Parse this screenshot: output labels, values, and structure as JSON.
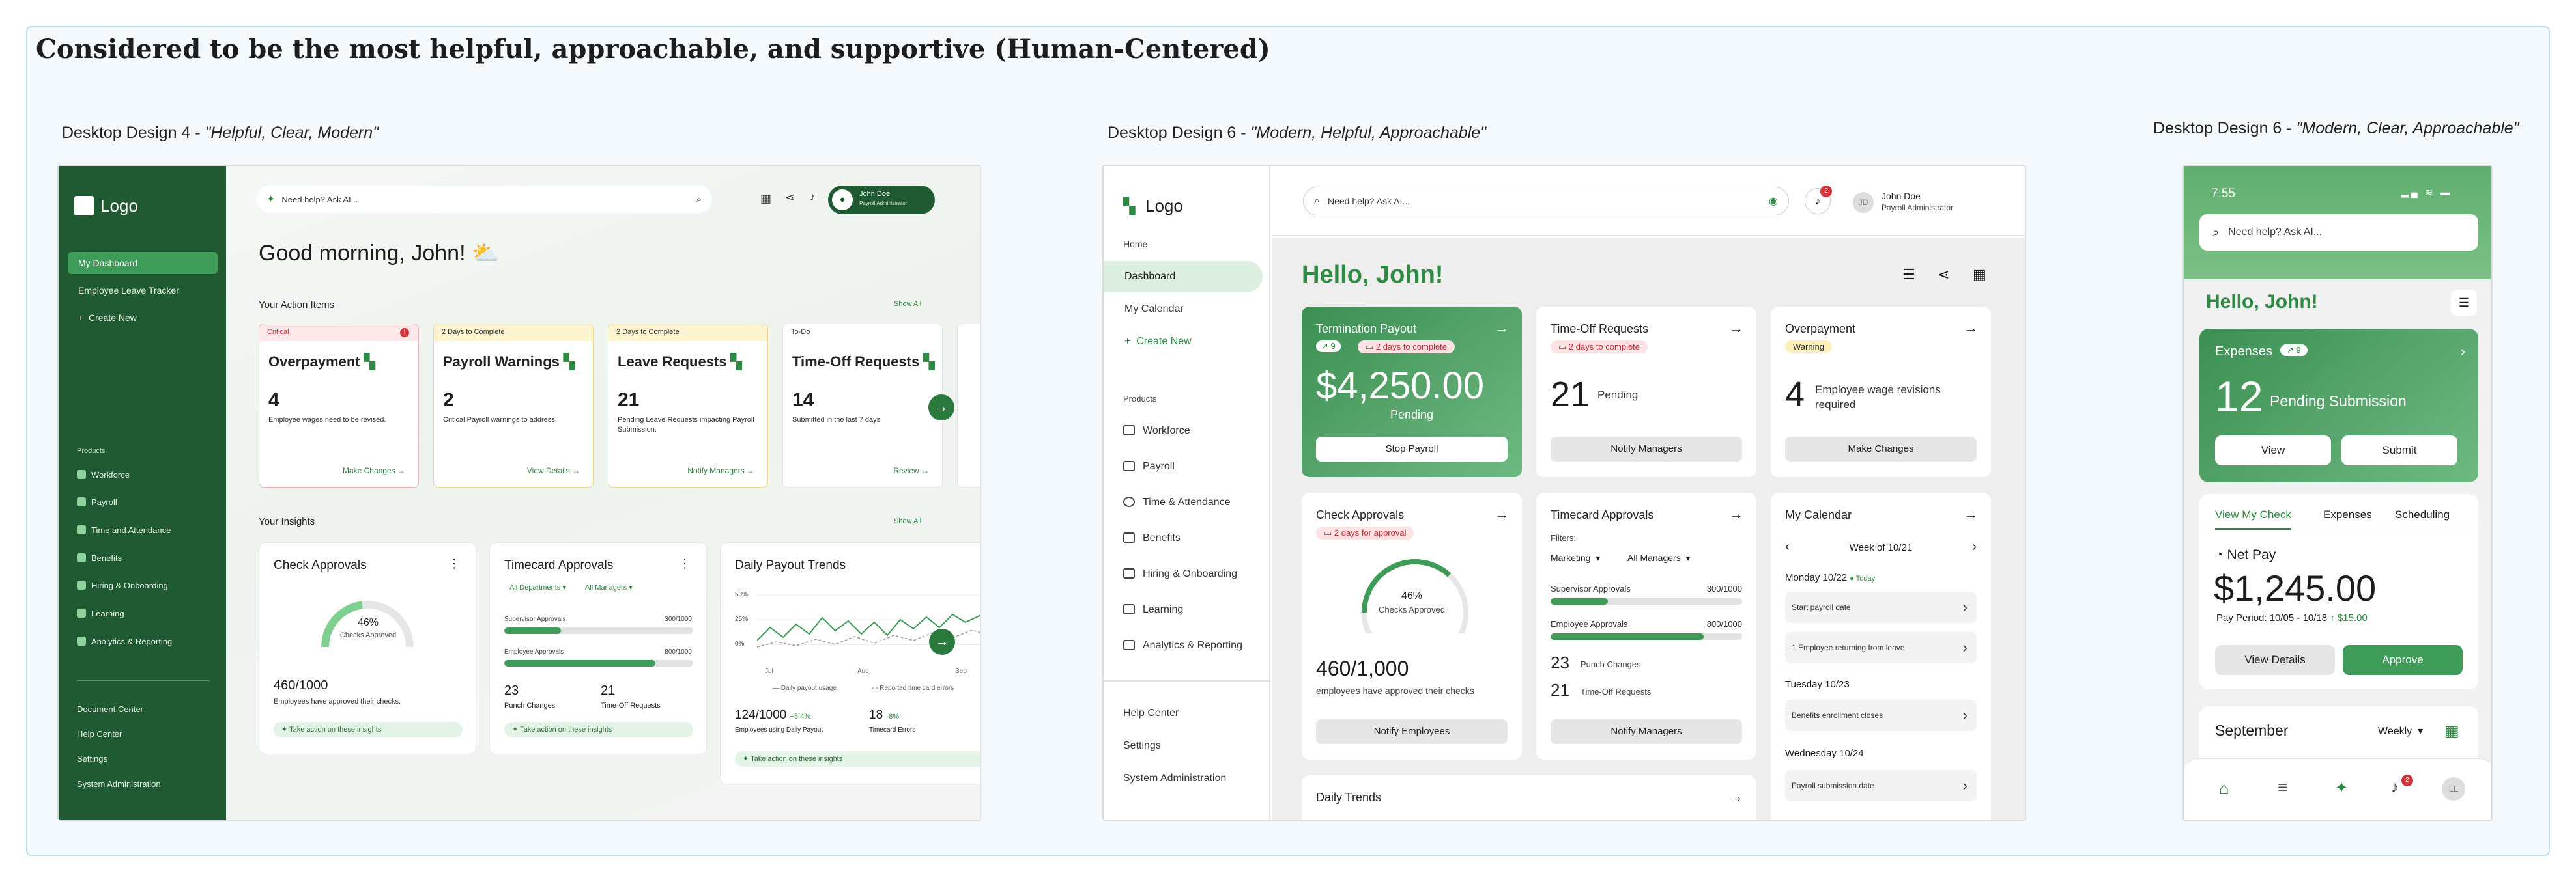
{
  "board_title": "Considered to be the most helpful, approachable, and supportive (Human-Centered)",
  "labels": {
    "d4_prefix": "Desktop Design 4 - ",
    "d4_quote": "\"Helpful, Clear, Modern\"",
    "d6_prefix": "Desktop Design 6 - ",
    "d6_quote": "\"Modern, Helpful, Approachable\"",
    "m6_prefix": "Desktop Design 6 - ",
    "m6_quote": "\"Modern, Clear, Approachable\""
  },
  "d4": {
    "logo": "Logo",
    "nav": [
      "My Dashboard",
      "Employee Leave Tracker",
      "Create New"
    ],
    "products_heading": "Products",
    "products": [
      "Workforce",
      "Payroll",
      "Time and Attendance",
      "Benefits",
      "Hiring & Onboarding",
      "Learning",
      "Analytics & Reporting"
    ],
    "bottom_nav": [
      "Document Center",
      "Help Center",
      "Settings",
      "System Administration"
    ],
    "search_placeholder": "Need help? Ask AI...",
    "user_name": "John Doe",
    "user_role": "Payroll Administrator",
    "greeting": "Good morning, John! ⛅",
    "action_items_title": "Your Action Items",
    "show_all": "Show All",
    "cards": [
      {
        "header": "Critical",
        "title": "Overpayment",
        "number": "4",
        "desc": "Employee wages need to be revised.",
        "action": "Make Changes →"
      },
      {
        "header": "2 Days to Complete",
        "title": "Payroll Warnings",
        "number": "2",
        "desc": "Critical Payroll warnings to address.",
        "action": "View Details →"
      },
      {
        "header": "2 Days to Complete",
        "title": "Leave Requests",
        "number": "21",
        "desc": "Pending Leave Requests impacting Payroll Submission.",
        "action": "Notify Managers →"
      },
      {
        "header": "To-Do",
        "title": "Time-Off Requests",
        "number": "14",
        "desc": "Submitted in the last 7 days",
        "action": "Review →"
      }
    ],
    "insights_title": "Your Insights",
    "check_approvals": {
      "title": "Check Approvals",
      "pct": "46%",
      "pct_value": 46,
      "pct_label": "Checks Approved",
      "count": "460/1000",
      "desc": "Employees have approved their checks.",
      "take": "Take action on these insights"
    },
    "timecard": {
      "title": "Timecard Approvals",
      "filter1": "All Departments",
      "filter2": "All Managers",
      "sup_label": "Supervisor Approvals",
      "sup_val": "300/1000",
      "sup_fill": 0.3,
      "emp_label": "Employee Approvals",
      "emp_val": "800/1000",
      "emp_fill": 0.8,
      "punch_n": "23",
      "punch_l": "Punch Changes",
      "tor_n": "21",
      "tor_l": "Time-Off Requests",
      "take": "Take action on these insights"
    },
    "trends": {
      "title": "Daily Payout Trends",
      "y_ticks": [
        "50%",
        "25%",
        "0%"
      ],
      "x_ticks": [
        "Jul",
        "Aug",
        "Sep"
      ],
      "legend1": "Daily payout usage",
      "legend2": "Reported time card errors",
      "stat1": "124/1000",
      "stat1_delta": "+5.4%",
      "stat1_label": "Employees using Daily Payout",
      "stat2": "18",
      "stat2_delta": "-8%",
      "stat2_label": "Timecard Errors",
      "take": "Take action on these insights"
    }
  },
  "d6": {
    "logo": "Logo",
    "nav": [
      "Home",
      "Dashboard",
      "My Calendar",
      "Create New"
    ],
    "products_heading": "Products",
    "products": [
      "Workforce",
      "Payroll",
      "Time & Attendance",
      "Benefits",
      "Hiring & Onboarding",
      "Learning",
      "Analytics & Reporting"
    ],
    "bottom_nav": [
      "Help Center",
      "Settings",
      "System Administration"
    ],
    "search_placeholder": "Need help? Ask AI...",
    "notif_count": "2",
    "avatar": "JD",
    "user_name": "John Doe",
    "user_role": "Payroll Administrator",
    "greeting": "Hello, John!",
    "termination": {
      "title": "Termination Payout",
      "trend": "↗ 9",
      "due": "2 days to complete",
      "amount": "$4,250.00",
      "status": "Pending",
      "button": "Stop Payroll"
    },
    "timeoff": {
      "title": "Time-Off Requests",
      "due": "2 days to complete",
      "number": "21",
      "label": "Pending",
      "button": "Notify Managers"
    },
    "overpayment": {
      "title": "Overpayment",
      "badge": "Warning",
      "number": "4",
      "label": "Employee wage revisions required",
      "button": "Make Changes"
    },
    "check": {
      "title": "Check Approvals",
      "due": "2 days for approval",
      "pct": "46%",
      "pct_value": 46,
      "pct_label": "Checks Approved",
      "count": "460/1,000",
      "desc": "employees have approved their checks",
      "button": "Notify Employees"
    },
    "timecard": {
      "title": "Timecard Approvals",
      "filters_label": "Filters:",
      "filter1": "Marketing",
      "filter2": "All Managers",
      "sup_label": "Supervisor Approvals",
      "sup_val": "300/1000",
      "sup_fill": 0.3,
      "emp_label": "Employee Approvals",
      "emp_val": "800/1000",
      "emp_fill": 0.8,
      "punch_n": "23",
      "punch_l": "Punch Changes",
      "tor_n": "21",
      "tor_l": "Time-Off Requests",
      "button": "Notify Managers"
    },
    "calendar": {
      "title": "My Calendar",
      "week": "Week of 10/21",
      "day1": "Monday 10/22",
      "today": "Today",
      "ev1": "Start payroll date",
      "ev2": "1 Employee returning from leave",
      "day2": "Tuesday 10/23",
      "ev3": "Benefits enrollment closes",
      "day3": "Wednesday 10/24",
      "ev4": "Payroll submission date"
    },
    "trends_title": "Daily Trends"
  },
  "m6": {
    "time": "7:55",
    "search_placeholder": "Need help? Ask AI...",
    "greeting": "Hello, John!",
    "expenses": {
      "title": "Expenses",
      "trend": "↗ 9",
      "number": "12",
      "label": "Pending Submission",
      "view": "View",
      "submit": "Submit"
    },
    "tabs": [
      "View My Check",
      "Expenses",
      "Scheduling"
    ],
    "netpay": {
      "label": "Net Pay",
      "amount": "$1,245.00",
      "period": "Pay Period: 10/05 - 10/18",
      "delta": "$15.00",
      "view": "View Details",
      "approve": "Approve"
    },
    "month": "September",
    "range": "Weekly",
    "notif_count": "2",
    "avatar": "LL"
  }
}
